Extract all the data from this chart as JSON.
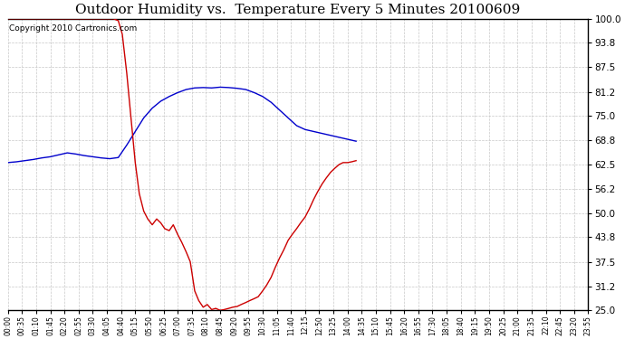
{
  "title": "Outdoor Humidity vs.  Temperature Every 5 Minutes 20100609",
  "copyright": "Copyright 2010 Cartronics.com",
  "background_color": "#ffffff",
  "grid_color": "#c8c8c8",
  "ylim": [
    25.0,
    100.0
  ],
  "yticks": [
    25.0,
    31.2,
    37.5,
    43.8,
    50.0,
    56.2,
    62.5,
    68.8,
    75.0,
    81.2,
    87.5,
    93.8,
    100.0
  ],
  "blue_color": "#0000cc",
  "red_color": "#cc0000",
  "title_fontsize": 11,
  "copyright_fontsize": 6.5,
  "xtick_fontsize": 5.5,
  "ytick_fontsize": 7.5,
  "time_labels": [
    "00:00",
    "00:35",
    "01:10",
    "01:45",
    "02:20",
    "02:55",
    "03:30",
    "04:05",
    "04:40",
    "05:15",
    "05:50",
    "06:25",
    "07:00",
    "07:35",
    "08:10",
    "08:45",
    "09:20",
    "09:55",
    "10:30",
    "11:05",
    "11:40",
    "12:15",
    "12:50",
    "13:25",
    "14:00",
    "14:35",
    "15:10",
    "15:45",
    "16:20",
    "16:55",
    "17:30",
    "18:05",
    "18:40",
    "19:15",
    "19:50",
    "20:25",
    "21:00",
    "21:35",
    "22:10",
    "22:45",
    "23:20",
    "23:55"
  ],
  "humidity_x": [
    0,
    21,
    42,
    63,
    84,
    105,
    126,
    147,
    168,
    189,
    210,
    231,
    252,
    273,
    294,
    315,
    336,
    357,
    378,
    399,
    420,
    441,
    462,
    483,
    504,
    525,
    546,
    567,
    588,
    609,
    630,
    651,
    672,
    693,
    714,
    735,
    756,
    777,
    798,
    819,
    840,
    861
  ],
  "humidity_y": [
    63.0,
    63.2,
    63.5,
    63.8,
    64.2,
    64.5,
    65.0,
    65.5,
    65.2,
    64.8,
    64.5,
    64.2,
    64.0,
    64.3,
    67.5,
    71.0,
    74.5,
    77.0,
    78.8,
    80.0,
    81.0,
    81.8,
    82.2,
    82.3,
    82.2,
    82.4,
    82.3,
    82.1,
    81.8,
    81.0,
    80.0,
    78.5,
    76.5,
    74.5,
    72.5,
    71.5,
    71.0,
    70.5,
    70.0,
    69.5,
    69.0,
    68.5
  ],
  "temperature_x": [
    0,
    21,
    42,
    63,
    84,
    105,
    126,
    147,
    168,
    189,
    210,
    231,
    252,
    261,
    273,
    283,
    294,
    304,
    315,
    325,
    336,
    346,
    357,
    368,
    378,
    388,
    399,
    409,
    420,
    430,
    441,
    451,
    462,
    472,
    483,
    493,
    504,
    514,
    525,
    535,
    546,
    556,
    567,
    577,
    588,
    598,
    609,
    619,
    630,
    640,
    651,
    661,
    672,
    682,
    693,
    703,
    714,
    724,
    735,
    745,
    756,
    766,
    777,
    787,
    798,
    808,
    819,
    829,
    840,
    850,
    861
  ],
  "temperature_y": [
    100.0,
    100.0,
    100.0,
    100.0,
    100.0,
    100.0,
    100.0,
    100.0,
    100.0,
    100.0,
    100.0,
    100.0,
    100.0,
    100.0,
    99.5,
    96.0,
    86.0,
    75.0,
    63.0,
    55.0,
    50.5,
    48.5,
    47.0,
    48.5,
    47.5,
    46.0,
    45.5,
    47.0,
    44.5,
    42.5,
    40.0,
    37.5,
    30.0,
    27.5,
    25.8,
    26.5,
    25.2,
    25.5,
    25.0,
    25.2,
    25.5,
    25.8,
    26.0,
    26.5,
    27.0,
    27.5,
    28.0,
    28.5,
    30.0,
    31.5,
    33.5,
    36.0,
    38.5,
    40.5,
    43.0,
    44.5,
    46.0,
    47.5,
    49.0,
    51.0,
    53.5,
    55.5,
    57.5,
    59.0,
    60.5,
    61.5,
    62.5,
    63.0,
    63.0,
    63.2,
    63.5
  ]
}
